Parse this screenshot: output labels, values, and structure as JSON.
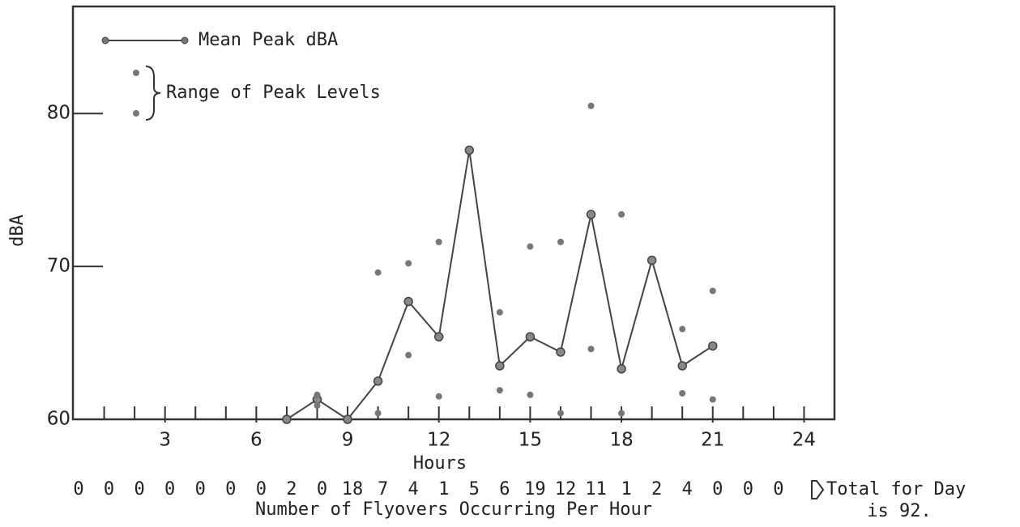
{
  "chart_data": {
    "type": "line",
    "y_label": "dBA",
    "x_label": "Hours",
    "x": [
      7,
      8,
      9,
      10,
      11,
      12,
      13,
      14,
      15,
      16,
      17,
      18,
      19,
      20,
      21
    ],
    "series": [
      {
        "name": "Mean Peak dBA",
        "color": "#444444",
        "values": [
          60,
          61.3,
          60,
          62.5,
          67.7,
          65.4,
          77.6,
          63.5,
          65.4,
          64.4,
          73.4,
          63.3,
          70.4,
          63.5,
          64.8
        ]
      },
      {
        "name": "Range of Peak Levels",
        "color": "#777777",
        "high": [
          null,
          61.6,
          null,
          69.6,
          70.2,
          71.6,
          null,
          67.0,
          71.3,
          71.6,
          80.5,
          73.4,
          null,
          65.9,
          68.4
        ],
        "low": [
          null,
          60.9,
          null,
          60.4,
          64.2,
          61.5,
          null,
          61.9,
          61.6,
          60.4,
          64.6,
          60.4,
          null,
          61.7,
          61.3
        ]
      }
    ],
    "xlim": [
      0,
      25
    ],
    "xticks": [
      3,
      6,
      9,
      12,
      15,
      18,
      21,
      24
    ],
    "xminor_ticks": [
      1,
      2,
      3,
      4,
      5,
      6,
      7,
      8,
      9,
      10,
      11,
      12,
      13,
      14,
      15,
      16,
      17,
      18,
      19,
      20,
      21,
      22,
      23,
      24
    ],
    "ylim": [
      60,
      87
    ],
    "yticks": [
      60,
      70,
      80
    ],
    "flyovers": [
      0,
      0,
      0,
      0,
      0,
      0,
      0,
      2,
      0,
      18,
      7,
      4,
      1,
      5,
      6,
      19,
      12,
      11,
      1,
      2,
      4,
      0,
      0,
      0
    ],
    "flyovers_label": "Number of Flyovers Occurring Per Hour",
    "total_label": [
      "Total for Day",
      "is 92."
    ]
  }
}
